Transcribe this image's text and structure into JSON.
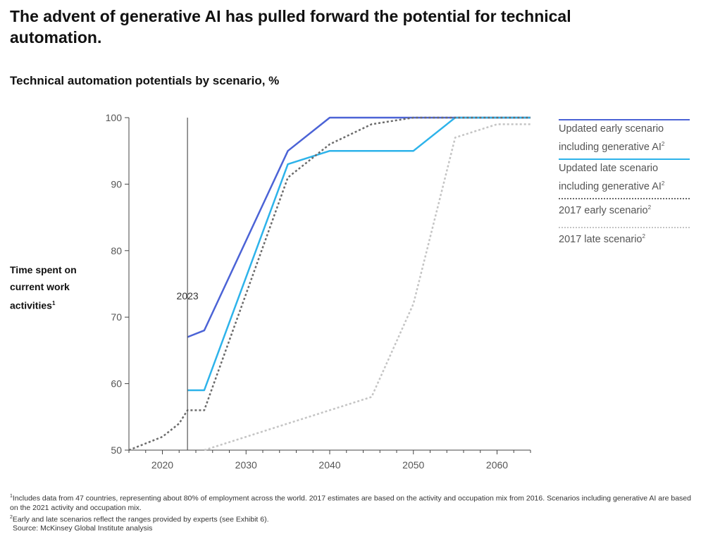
{
  "header": {
    "title": "The advent of generative AI has pulled forward the potential for technical automation.",
    "subtitle": "Technical automation potentials by scenario, %"
  },
  "axis": {
    "ylabel_main": "Time spent on current work activities",
    "ylabel_marker": "1",
    "marker_label": "2023"
  },
  "legend": [
    {
      "label": "Updated early scenario including generative AI",
      "sup": "2"
    },
    {
      "label": "Updated late scenario including generative AI",
      "sup": "2"
    },
    {
      "label": "2017 early scenario",
      "sup": "2"
    },
    {
      "label": "2017 late scenario",
      "sup": "2"
    }
  ],
  "footnotes": {
    "f1_marker": "1",
    "f1": "Includes data from 47 countries, representing about 80% of employment across the world. 2017 estimates are based on the activity and occupation mix from 2016. Scenarios including generative AI are based on the 2021 activity and occupation mix.",
    "f2_marker": "2",
    "f2": "Early and late scenarios reflect the ranges provided by experts (see Exhibit 6).",
    "source": "Source: McKinsey Global Institute analysis"
  },
  "colors": {
    "early_updated": "#4b63d6",
    "late_updated": "#2db3ea",
    "early_2017": "#6b6b6b",
    "late_2017": "#c4c4c4"
  },
  "chart_data": {
    "type": "line",
    "title": "Technical automation potentials by scenario, %",
    "xlabel": "",
    "ylabel": "Time spent on current work activities",
    "xlim": [
      2016,
      2064
    ],
    "ylim": [
      50,
      100
    ],
    "xticks": [
      2020,
      2030,
      2040,
      2050,
      2060
    ],
    "yticks": [
      50,
      60,
      70,
      80,
      90,
      100
    ],
    "vline": {
      "x": 2023,
      "label": "2023"
    },
    "series": [
      {
        "name": "Updated early scenario including generative AI",
        "style": "solid",
        "color": "#4b63d6",
        "x": [
          2023,
          2025,
          2035,
          2040,
          2064
        ],
        "y": [
          67,
          68,
          95,
          100,
          100
        ]
      },
      {
        "name": "Updated late scenario including generative AI",
        "style": "solid",
        "color": "#2db3ea",
        "x": [
          2023,
          2025,
          2035,
          2040,
          2050,
          2055,
          2064
        ],
        "y": [
          59,
          59,
          93,
          95,
          95,
          100,
          100
        ]
      },
      {
        "name": "2017 early scenario",
        "style": "dotted",
        "color": "#6b6b6b",
        "x": [
          2016,
          2020,
          2022,
          2023,
          2025,
          2035,
          2040,
          2045,
          2050,
          2064
        ],
        "y": [
          50,
          52,
          54,
          56,
          56,
          91,
          96,
          99,
          100,
          100
        ]
      },
      {
        "name": "2017 late scenario",
        "style": "dotted",
        "color": "#c4c4c4",
        "x": [
          2025,
          2035,
          2045,
          2050,
          2055,
          2060,
          2064
        ],
        "y": [
          50,
          54,
          58,
          72,
          97,
          99,
          99
        ]
      }
    ]
  }
}
